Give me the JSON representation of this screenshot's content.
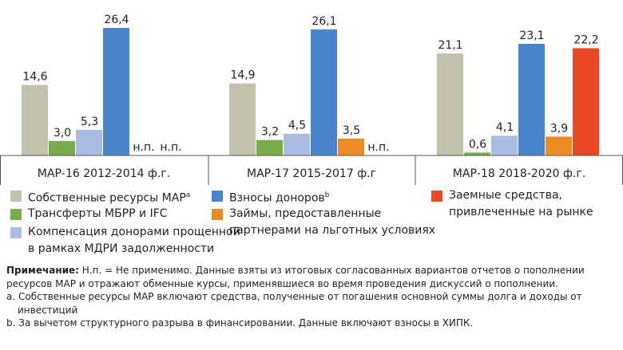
{
  "chart_data": {
    "type": "bar",
    "categories": [
      "МАР-16 2012-2014 ф.г.",
      "МАР-17 2015-2017 ф.г",
      "МАР-18 2018-2020 ф.г."
    ],
    "series": [
      {
        "name": "Собственные ресурсы МАР",
        "name_note": "a",
        "color": "#c2c1ab",
        "values": [
          14.6,
          14.9,
          21.1
        ],
        "value_labels": [
          "14,6",
          "14,9",
          "21,1"
        ]
      },
      {
        "name": "Трансферты МБРР и IFC",
        "color": "#78ab4c",
        "values": [
          3.0,
          3.2,
          0.6
        ],
        "value_labels": [
          "3,0",
          "3,2",
          "0,6"
        ]
      },
      {
        "name": "Компенсация донорами прощенной в рамках МДРИ задолженности",
        "color": "#a9bde3",
        "values": [
          5.3,
          4.5,
          4.1
        ],
        "value_labels": [
          "5,3",
          "4,5",
          "4,1"
        ]
      },
      {
        "name": "Взносы доноров",
        "name_note": "b",
        "color": "#4a84cd",
        "values": [
          26.4,
          26.1,
          23.1
        ],
        "value_labels": [
          "26,4",
          "26,1",
          "23,1"
        ]
      },
      {
        "name": "Займы, предоставленные партнерами на льготных условиях",
        "color": "#ec8a23",
        "values": [
          null,
          3.5,
          3.9
        ],
        "value_labels": [
          "н.п.",
          "3,5",
          "3,9"
        ]
      },
      {
        "name": "Заемные средства, привлеченные на рынке",
        "color": "#e84a26",
        "values": [
          null,
          null,
          22.2
        ],
        "value_labels": [
          "н.п.",
          "н.п.",
          "22,2"
        ]
      }
    ]
  },
  "notes": {
    "label": "Примечание:",
    "text": "Н.п. = Не применимо. Данные взяты из итоговых согласованных вариантов отчетов о пополнении ресурсов МАР и отражают обменные курсы, применявшиеся во время проведения дискуссий о пополнении.",
    "footnotes": [
      "a. Собственные ресурсы МАР включают средства, полученные от погашения основной суммы долга и доходы от инвестиций",
      "b. За вычетом структурного разрыва в финансировании. Данные включают взносы в ХИПК."
    ]
  }
}
